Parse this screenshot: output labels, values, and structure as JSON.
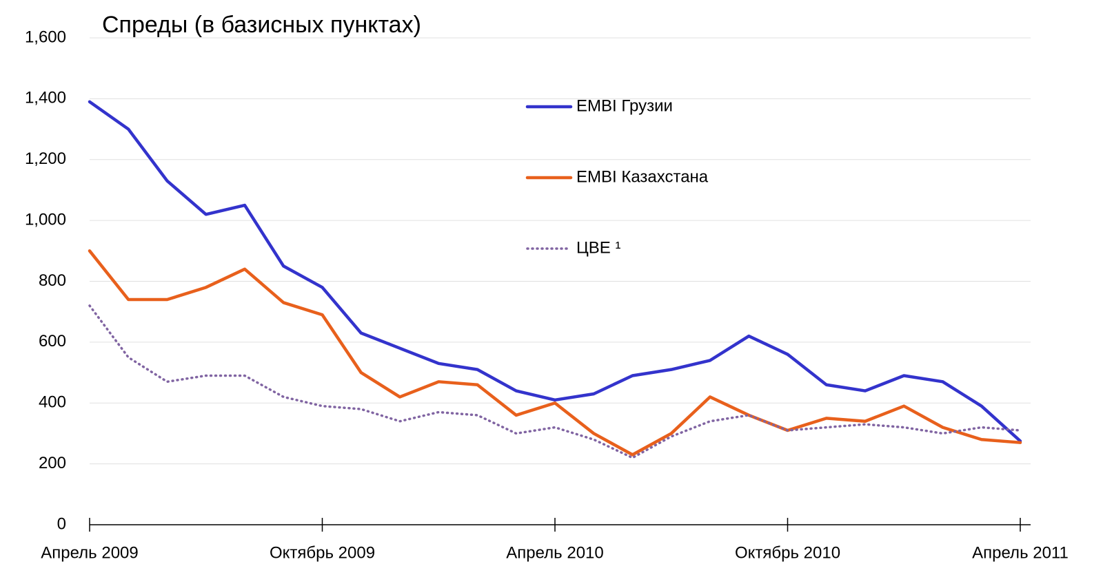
{
  "chart_data": {
    "type": "line",
    "title": "Спреды (в базисных пунктах)",
    "x": [
      "2009-04",
      "2009-05",
      "2009-06",
      "2009-07",
      "2009-08",
      "2009-09",
      "2009-10",
      "2009-11",
      "2009-12",
      "2010-01",
      "2010-02",
      "2010-03",
      "2010-04",
      "2010-05",
      "2010-06",
      "2010-07",
      "2010-08",
      "2010-09",
      "2010-10",
      "2010-11",
      "2010-12",
      "2011-01",
      "2011-02",
      "2011-03",
      "2011-04"
    ],
    "xticks": [
      {
        "value": "2009-04",
        "label": "Апрель 2009"
      },
      {
        "value": "2009-10",
        "label": "Октябрь 2009"
      },
      {
        "value": "2010-04",
        "label": "Апрель 2010"
      },
      {
        "value": "2010-10",
        "label": "Октябрь 2010"
      },
      {
        "value": "2011-04",
        "label": "Апрель 2011"
      }
    ],
    "ylim": [
      0,
      1600
    ],
    "yticks": [
      0,
      200,
      400,
      600,
      800,
      {
        "value": 1000,
        "label": "1,000"
      },
      {
        "value": 1200,
        "label": "1,200"
      },
      {
        "value": 1400,
        "label": "1,400"
      },
      {
        "value": 1600,
        "label": "1,600"
      }
    ],
    "grid": true,
    "series": [
      {
        "name": "EMBI Грузии",
        "color": "#3333cc",
        "dash": "solid",
        "values": [
          1390,
          1300,
          1130,
          1020,
          1050,
          850,
          780,
          630,
          580,
          530,
          510,
          440,
          410,
          430,
          490,
          510,
          540,
          620,
          560,
          460,
          440,
          490,
          470,
          390,
          275
        ]
      },
      {
        "name": "EMBI Казахстана",
        "color": "#e8601c",
        "dash": "solid",
        "values": [
          900,
          740,
          740,
          780,
          840,
          730,
          690,
          500,
          420,
          470,
          460,
          360,
          400,
          300,
          230,
          300,
          420,
          360,
          310,
          350,
          340,
          390,
          320,
          280,
          270
        ]
      },
      {
        "name": "ЦВЕ ¹",
        "color": "#8064a2",
        "dash": "dotted",
        "values": [
          720,
          550,
          470,
          490,
          490,
          420,
          390,
          380,
          340,
          370,
          360,
          300,
          320,
          280,
          220,
          290,
          340,
          360,
          310,
          320,
          330,
          320,
          300,
          320,
          310
        ]
      }
    ]
  }
}
